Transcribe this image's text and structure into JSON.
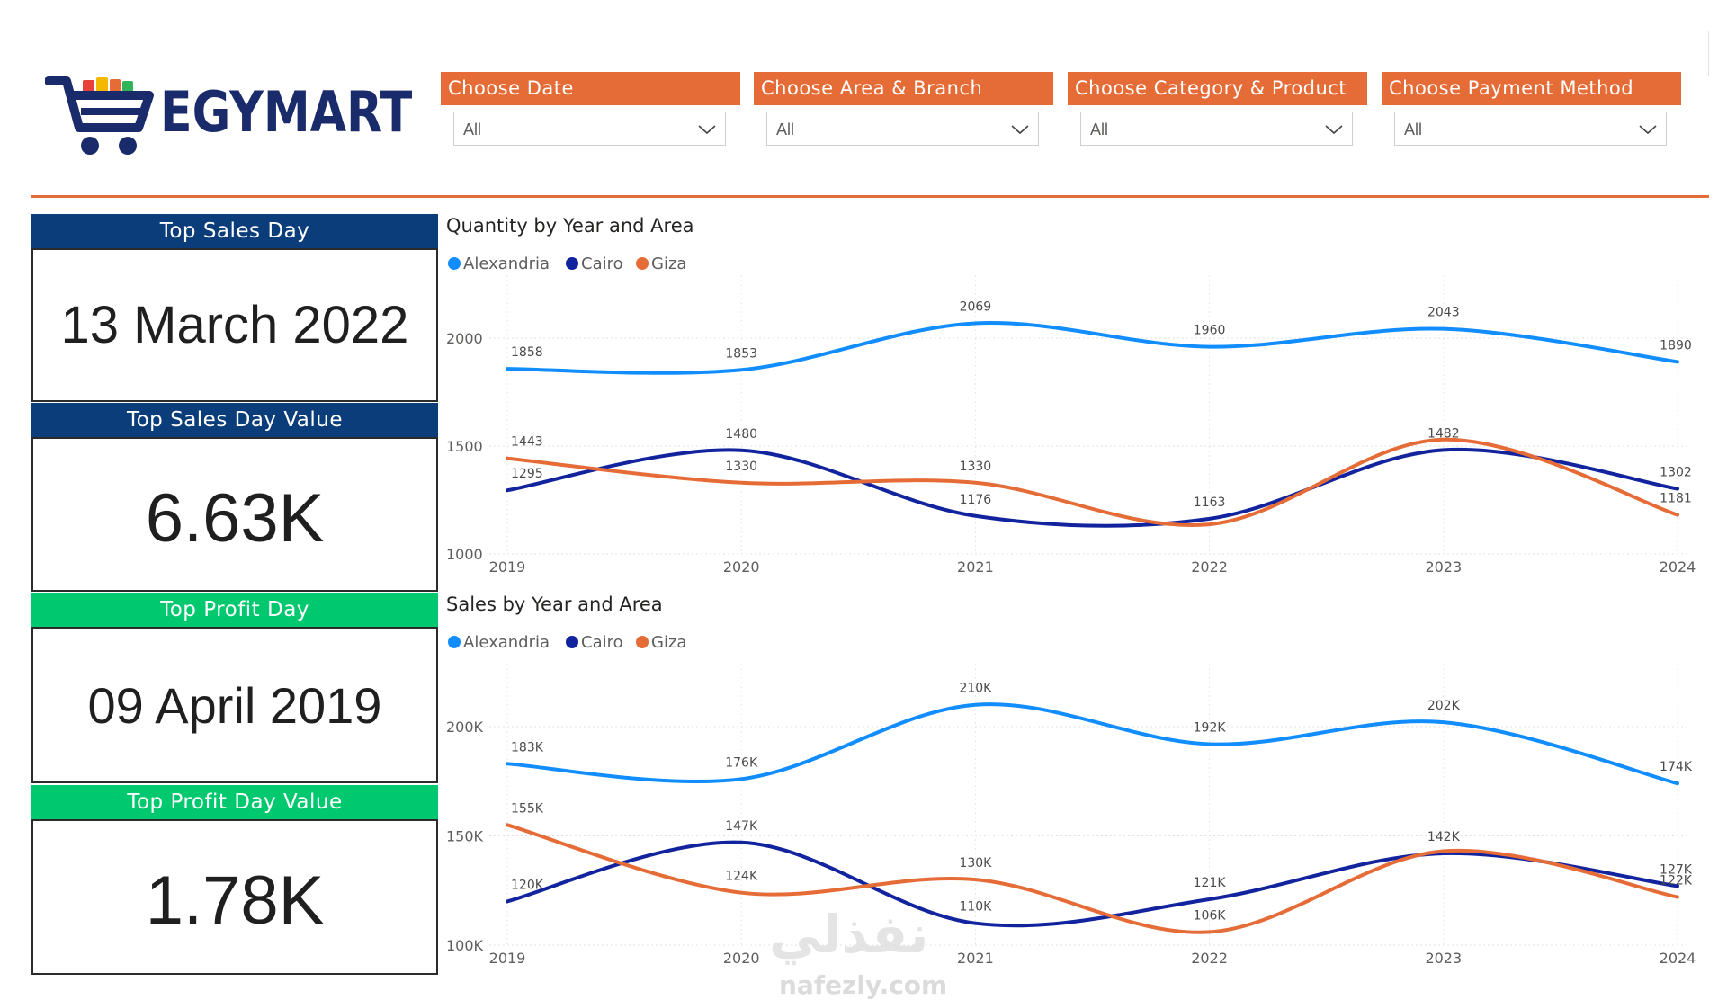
{
  "app": {
    "brand": "EGYMART",
    "brand_colors": {
      "primary": "#1a2b6b",
      "accent": "#e66c37",
      "kpi_blue": "#0b3d7a",
      "kpi_green": "#00c86e"
    }
  },
  "filters": [
    {
      "label": "Choose Date",
      "value": "All"
    },
    {
      "label": "Choose Area & Branch",
      "value": "All"
    },
    {
      "label": "Choose Category & Product",
      "value": "All"
    },
    {
      "label": "Choose Payment Method",
      "value": "All"
    }
  ],
  "kpis": [
    {
      "title": "Top Sales Day",
      "value": "13 March 2022",
      "color": "#0b3d7a"
    },
    {
      "title": "Top Sales Day Value",
      "value": "6.63K",
      "color": "#0b3d7a"
    },
    {
      "title": "Top Profit Day",
      "value": "09 April 2019",
      "color": "#00c86e"
    },
    {
      "title": "Top Profit Day Value",
      "value": "1.78K",
      "color": "#00c86e"
    }
  ],
  "chart_data": [
    {
      "type": "line",
      "title": "Quantity by Year and Area",
      "legend_position": "top-left",
      "x": [
        "2019",
        "2020",
        "2021",
        "2022",
        "2023",
        "2024"
      ],
      "ylim": [
        1000,
        2000
      ],
      "yticks": [
        {
          "value": 1000,
          "label": "1000"
        },
        {
          "value": 1500,
          "label": "1500"
        },
        {
          "value": 2000,
          "label": "2000"
        }
      ],
      "series": [
        {
          "name": "Alexandria",
          "color": "#118dff",
          "values": [
            1858,
            1853,
            2069,
            1960,
            2043,
            1890
          ],
          "labels": [
            "1858",
            "1853",
            "2069",
            "1960",
            "2043",
            "1890"
          ]
        },
        {
          "name": "Cairo",
          "color": "#12239e",
          "values": [
            1295,
            1480,
            1176,
            1163,
            1482,
            1302
          ],
          "labels": [
            "1295",
            "1480",
            "1176",
            "1163",
            "1482",
            "1302"
          ]
        },
        {
          "name": "Giza",
          "color": "#e66c37",
          "values": [
            1443,
            1330,
            1330,
            1137,
            1530,
            1181
          ],
          "labels": [
            "1443",
            "1330",
            "1330",
            "",
            "",
            "1181"
          ]
        }
      ]
    },
    {
      "type": "line",
      "title": "Sales by Year and Area",
      "legend_position": "top-left",
      "x": [
        "2019",
        "2020",
        "2021",
        "2022",
        "2023",
        "2024"
      ],
      "ylim": [
        100000,
        200000
      ],
      "yticks": [
        {
          "value": 100000,
          "label": "100K"
        },
        {
          "value": 150000,
          "label": "150K"
        },
        {
          "value": 200000,
          "label": "200K"
        }
      ],
      "series": [
        {
          "name": "Alexandria",
          "color": "#118dff",
          "values": [
            183000,
            176000,
            210000,
            192000,
            202000,
            174000
          ],
          "labels": [
            "183K",
            "176K",
            "210K",
            "192K",
            "202K",
            "174K"
          ]
        },
        {
          "name": "Cairo",
          "color": "#12239e",
          "values": [
            120000,
            147000,
            110000,
            121000,
            142000,
            127000
          ],
          "labels": [
            "120K",
            "147K",
            "110K",
            "121K",
            "142K",
            "127K"
          ]
        },
        {
          "name": "Giza",
          "color": "#e66c37",
          "values": [
            155000,
            124000,
            130000,
            106000,
            143000,
            122000
          ],
          "labels": [
            "155K",
            "124K",
            "130K",
            "106K",
            "",
            "122K"
          ]
        }
      ]
    }
  ],
  "watermark": {
    "arabic": "نفذلي",
    "url": "nafezly.com"
  }
}
